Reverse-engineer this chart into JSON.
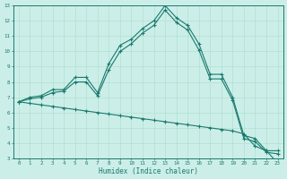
{
  "xlabel": "Humidex (Indice chaleur)",
  "bg_color": "#cceee8",
  "line_color": "#1a7a6e",
  "grid_color": "#aaddcc",
  "xlim": [
    -0.5,
    23.5
  ],
  "ylim": [
    3,
    13
  ],
  "xticks": [
    0,
    1,
    2,
    3,
    4,
    5,
    6,
    7,
    8,
    9,
    10,
    11,
    12,
    13,
    14,
    15,
    16,
    17,
    18,
    19,
    20,
    21,
    22,
    23
  ],
  "yticks": [
    3,
    4,
    5,
    6,
    7,
    8,
    9,
    10,
    11,
    12,
    13
  ],
  "line1_x": [
    0,
    1,
    2,
    3,
    4,
    5,
    6,
    7,
    8,
    9,
    10,
    11,
    12,
    13,
    14,
    15,
    16,
    17,
    18,
    19,
    20,
    21,
    22,
    23
  ],
  "line1_y": [
    6.7,
    7.0,
    7.1,
    7.5,
    7.5,
    8.3,
    8.3,
    7.3,
    9.2,
    10.4,
    10.8,
    11.5,
    12.0,
    13.0,
    12.2,
    11.7,
    10.5,
    8.5,
    8.5,
    7.0,
    4.5,
    4.3,
    3.5,
    3.5
  ],
  "line2_x": [
    0,
    1,
    2,
    3,
    4,
    5,
    6,
    7,
    8,
    9,
    10,
    11,
    12,
    13,
    14,
    15,
    16,
    17,
    18,
    19,
    20,
    21,
    22,
    23
  ],
  "line2_y": [
    6.7,
    6.9,
    7.0,
    7.3,
    7.4,
    8.0,
    8.0,
    7.1,
    8.8,
    10.0,
    10.5,
    11.2,
    11.7,
    12.7,
    11.9,
    11.4,
    10.1,
    8.2,
    8.2,
    6.8,
    4.3,
    4.1,
    3.4,
    3.3
  ],
  "line3_x": [
    0,
    1,
    2,
    3,
    4,
    5,
    6,
    7,
    8,
    9,
    10,
    11,
    12,
    13,
    14,
    15,
    16,
    17,
    18,
    19,
    20,
    21,
    22,
    23
  ],
  "line3_y": [
    6.7,
    6.6,
    6.5,
    6.4,
    6.3,
    6.2,
    6.1,
    6.0,
    5.9,
    5.8,
    5.7,
    5.6,
    5.5,
    5.4,
    5.3,
    5.2,
    5.1,
    5.0,
    4.9,
    4.8,
    4.6,
    3.8,
    3.5,
    2.7
  ]
}
